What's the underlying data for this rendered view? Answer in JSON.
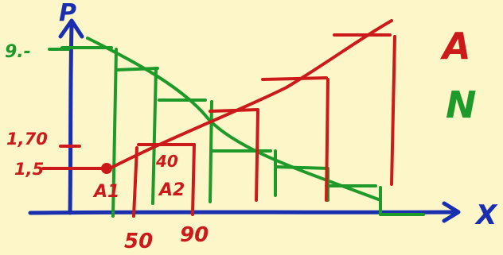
{
  "axes": {
    "y_label": "P",
    "x_label": "X",
    "y_ticks": [
      "9.-",
      "1,70",
      "1,5"
    ],
    "x_ticks": [
      "50",
      "90"
    ]
  },
  "annotations": {
    "point_a1": "A1",
    "point_a2": "A2",
    "mid_value": "40"
  },
  "legend": {
    "red_label": "A",
    "green_label": "N"
  },
  "colors": {
    "axis": "#1a2fb0",
    "supply": "#cc1a1a",
    "demand": "#1e9a2a",
    "background": "#fdf6c8"
  }
}
